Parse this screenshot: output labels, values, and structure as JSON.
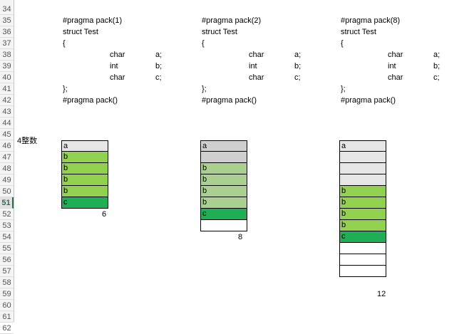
{
  "row_numbers": [
    "34",
    "35",
    "36",
    "37",
    "38",
    "39",
    "40",
    "41",
    "42",
    "43",
    "44",
    "45",
    "46",
    "47",
    "48",
    "49",
    "50",
    "51",
    "52",
    "53",
    "54",
    "55",
    "56",
    "57",
    "58",
    "59",
    "60",
    "61",
    "62"
  ],
  "active_row": "51",
  "row_label": "4整数",
  "colors": {
    "light_gray": "#e6e6e6",
    "mid_gray": "#cfcfcf",
    "green": "#92d050",
    "pale_green": "#a9d08e",
    "dark_green": "#1fae54",
    "white": "#ffffff"
  },
  "blocks": [
    {
      "code": [
        "#pragma pack(1)",
        "struct Test",
        "{",
        "char",
        "a;",
        "int",
        "b;",
        "char",
        "c;",
        "};",
        "#pragma pack()"
      ],
      "cells": [
        {
          "label": "a",
          "color": "#e6e6e6"
        },
        {
          "label": "b",
          "color": "#92d050"
        },
        {
          "label": "b",
          "color": "#92d050"
        },
        {
          "label": "b",
          "color": "#92d050"
        },
        {
          "label": "b",
          "color": "#92d050"
        },
        {
          "label": "c",
          "color": "#1fae54"
        }
      ],
      "size": "6"
    },
    {
      "code": [
        "#pragma pack(2)",
        "struct Test",
        "{",
        "char",
        "a;",
        "int",
        "b;",
        "char",
        "c;",
        "};",
        "#pragma pack()"
      ],
      "cells": [
        {
          "label": "a",
          "color": "#cfcfcf"
        },
        {
          "label": "",
          "color": "#cfcfcf"
        },
        {
          "label": "b",
          "color": "#a9d08e"
        },
        {
          "label": "b",
          "color": "#a9d08e"
        },
        {
          "label": "b",
          "color": "#a9d08e"
        },
        {
          "label": "b",
          "color": "#a9d08e"
        },
        {
          "label": "c",
          "color": "#1fae54"
        },
        {
          "label": "",
          "color": "#ffffff"
        }
      ],
      "size": "8"
    },
    {
      "code": [
        "#pragma pack(8)",
        "struct Test",
        "{",
        "char",
        "a;",
        "int",
        "b;",
        "char",
        "c;",
        "};",
        "#pragma pack()"
      ],
      "cells": [
        {
          "label": "a",
          "color": "#e6e6e6"
        },
        {
          "label": "",
          "color": "#e6e6e6"
        },
        {
          "label": "",
          "color": "#e6e6e6"
        },
        {
          "label": "",
          "color": "#e6e6e6"
        },
        {
          "label": "b",
          "color": "#92d050"
        },
        {
          "label": "b",
          "color": "#92d050"
        },
        {
          "label": "b",
          "color": "#92d050"
        },
        {
          "label": "b",
          "color": "#92d050"
        },
        {
          "label": "c",
          "color": "#1fae54"
        },
        {
          "label": "",
          "color": "#ffffff"
        },
        {
          "label": "",
          "color": "#ffffff"
        },
        {
          "label": "",
          "color": "#ffffff"
        }
      ],
      "size": "12"
    }
  ]
}
